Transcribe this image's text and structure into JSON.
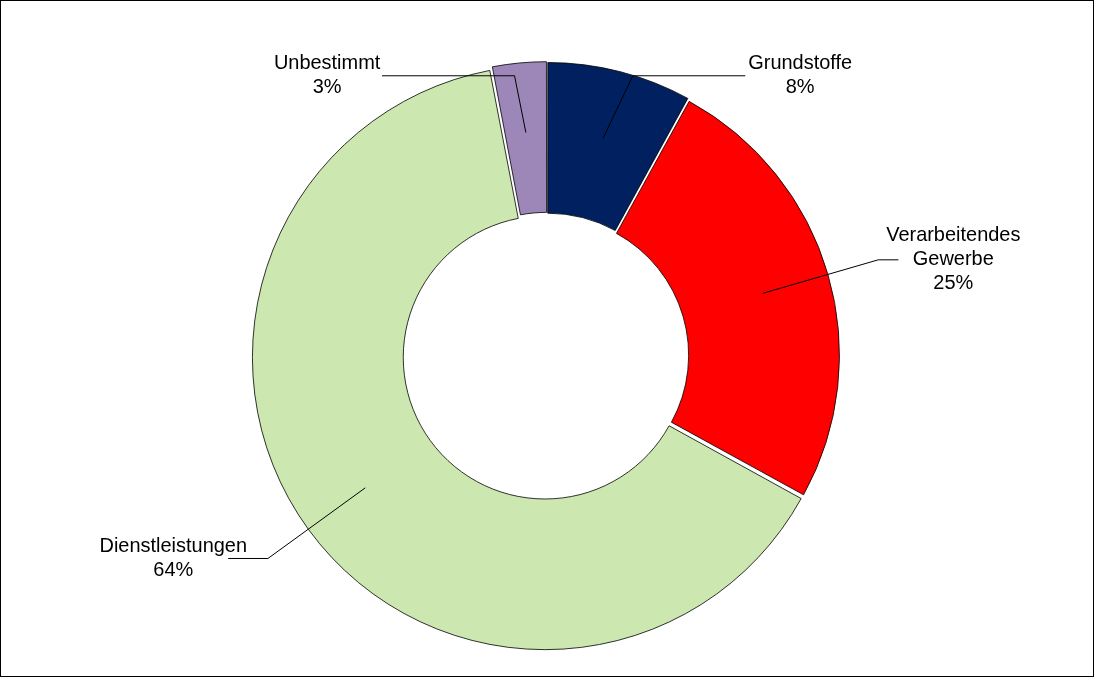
{
  "chart_data": {
    "type": "donut",
    "categories": [
      "Grundstoffe",
      "Verarbeitendes Gewerbe",
      "Dienstleistungen",
      "Unbestimmt"
    ],
    "values": [
      8,
      25,
      64,
      3
    ],
    "value_labels": [
      "8%",
      "25%",
      "64%",
      "3%"
    ],
    "colors": [
      "#002060",
      "#ff0000",
      "#cce8b0",
      "#9c87b8"
    ],
    "legend": false
  }
}
